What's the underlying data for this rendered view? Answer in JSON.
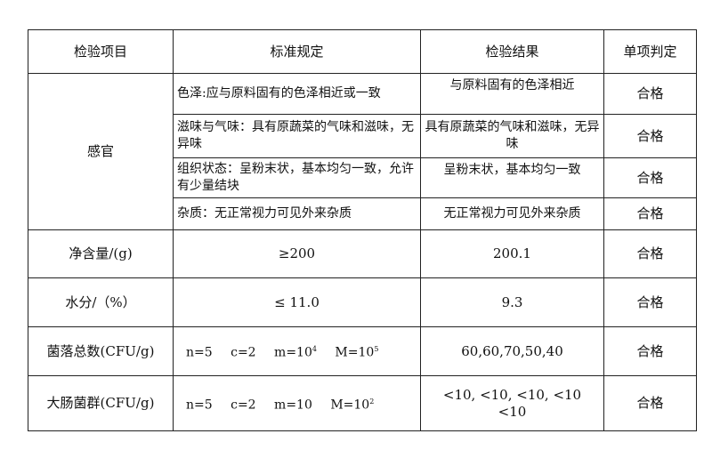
{
  "headers": [
    "检验项目",
    "标准规定",
    "检验结果",
    "单项判定"
  ],
  "sensory": {
    "label": "感官",
    "rows": [
      {
        "standard": "色泽:应与原料固有的色泽相近或一致",
        "result": "与原料固有的色泽相近",
        "verdict": "合格"
      },
      {
        "standard": "滋味与气味：具有原蔬菜的气味和滋味，无异味",
        "result": "具有原蔬菜的气味和滋味，无异味",
        "verdict": "合格"
      },
      {
        "standard": "组织状态：呈粉末状，基本均匀一致，允许有少量结块",
        "result": "呈粉末状，基本均匀一致",
        "verdict": "合格"
      },
      {
        "standard": "杂质：无正常视力可见外来杂质",
        "result": "无正常视力可见外来杂质",
        "verdict": "合格"
      }
    ]
  },
  "net": {
    "label": "净含量/(g)",
    "standard": "≥200",
    "result": "200.1",
    "verdict": "合格"
  },
  "water": {
    "label": "水分/（%）",
    "standard": "≤ 11.0",
    "result": "9.3",
    "verdict": "合格"
  },
  "colony": {
    "label": "菌落总数(CFU/g)",
    "n": "n=5",
    "c": "c=2",
    "m": "m=10",
    "m_exp": "4",
    "M": "M=10",
    "M_exp": "5",
    "result": "60,60,70,50,40",
    "verdict": "合格"
  },
  "coliform": {
    "label": "大肠菌群(CFU/g)",
    "n": "n=5",
    "c": "c=2",
    "m": "m=10",
    "M": "M=10",
    "M_exp": "2",
    "result_line1": "<10, <10, <10, <10",
    "result_line2": "<10",
    "verdict": "合格"
  }
}
